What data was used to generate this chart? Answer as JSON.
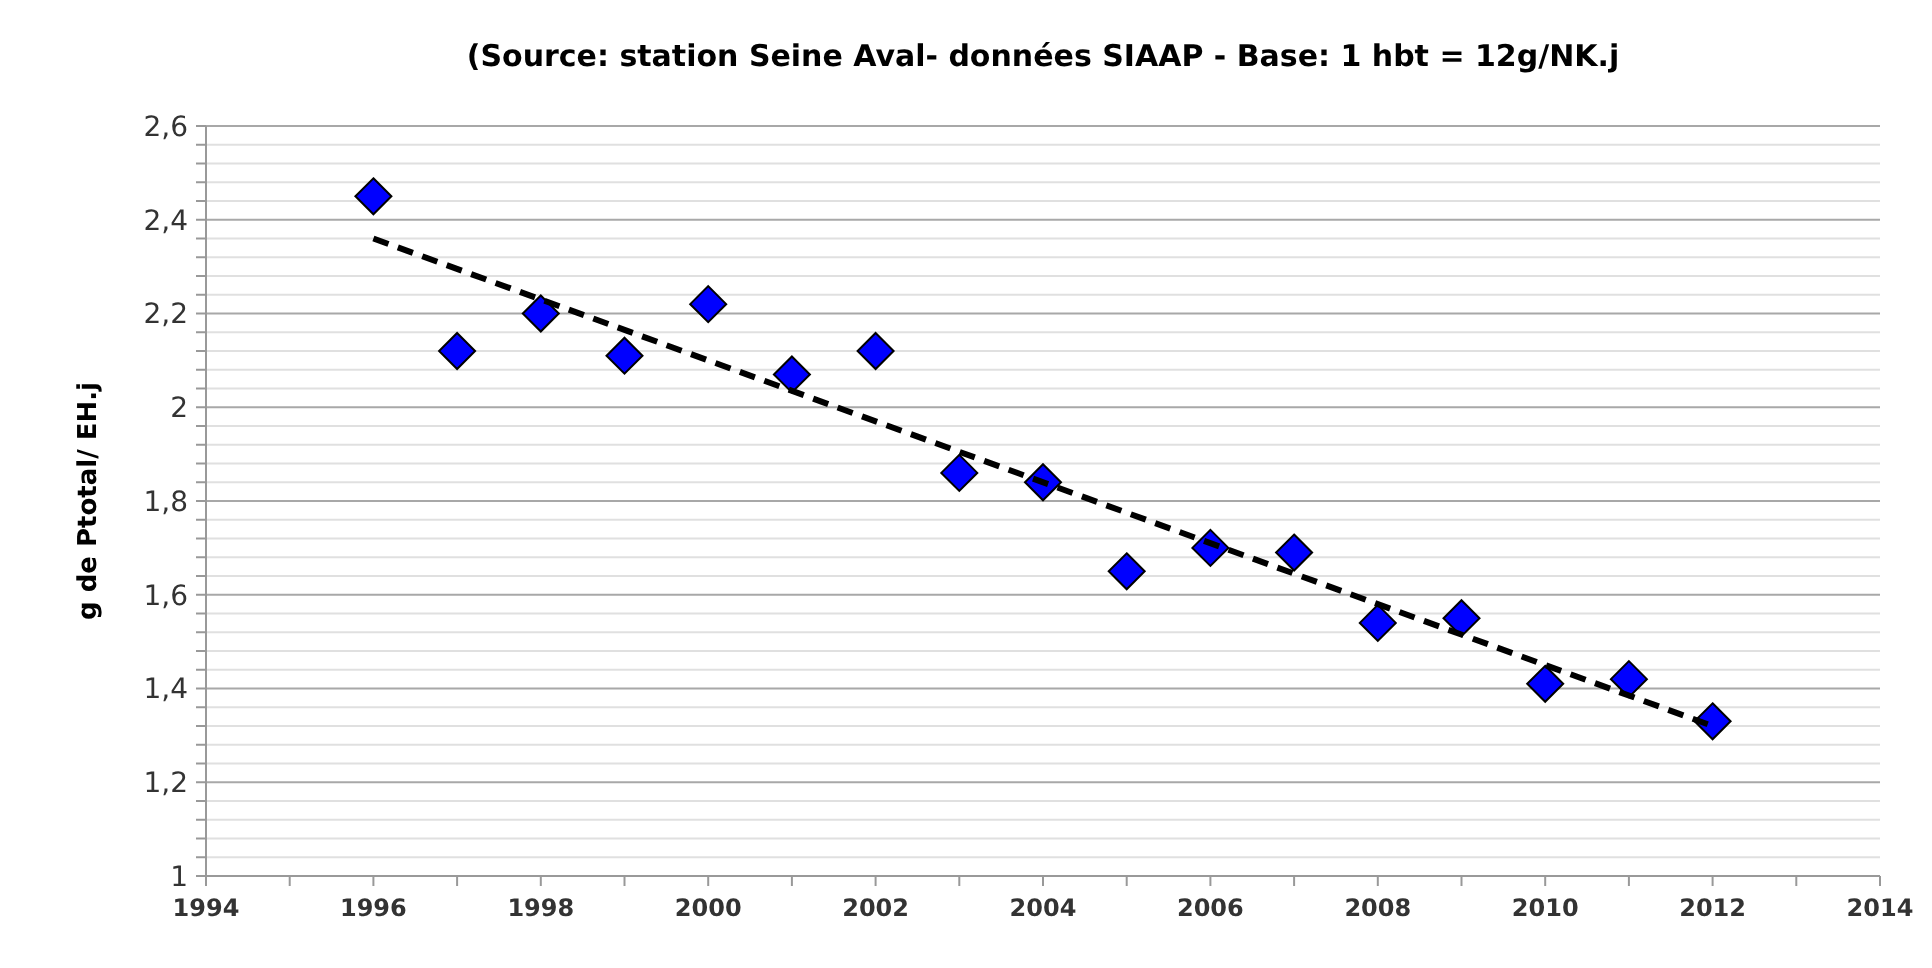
{
  "chart_data": {
    "type": "scatter",
    "title": "(Source: station Seine Aval- données SIAAP - Base: 1 hbt = 12g/NK.j",
    "ylabel": "g de Ptotal/ EH.j",
    "series": [
      {
        "color": "#0000ff",
        "marker": "diamond",
        "x": [
          1996,
          1997,
          1998,
          1999,
          2000,
          2001,
          2002,
          2003,
          2004,
          2005,
          2006,
          2007,
          2008,
          2009,
          2010,
          2011,
          2012
        ],
        "values": [
          2.45,
          2.12,
          2.2,
          2.11,
          2.22,
          2.07,
          2.12,
          1.86,
          1.84,
          1.65,
          1.7,
          1.69,
          1.54,
          1.55,
          1.41,
          1.42,
          1.33
        ]
      },
      {
        "type": "line",
        "color": "#000000",
        "line_style": "dashed",
        "marker": "none",
        "x": [
          1996,
          2012
        ],
        "values": [
          2.36,
          1.32
        ]
      }
    ],
    "xlim": [
      1994,
      2014
    ],
    "xticks": [
      1994,
      {
        "value": 1995,
        "label": null
      },
      1996,
      {
        "value": 1997,
        "label": null
      },
      1998,
      {
        "value": 1999,
        "label": null
      },
      2000,
      {
        "value": 2001,
        "label": null
      },
      2002,
      {
        "value": 2003,
        "label": null
      },
      2004,
      {
        "value": 2005,
        "label": null
      },
      2006,
      {
        "value": 2007,
        "label": null
      },
      2008,
      {
        "value": 2009,
        "label": null
      },
      2010,
      {
        "value": 2011,
        "label": null
      },
      2012,
      {
        "value": 2013,
        "label": null
      },
      2014
    ],
    "ylim": [
      1,
      2.6
    ],
    "yticks": [
      1,
      {
        "value": 1.04,
        "label": null
      },
      {
        "value": 1.08,
        "label": null
      },
      {
        "value": 1.12,
        "label": null
      },
      {
        "value": 1.16,
        "label": null
      },
      {
        "value": 1.2,
        "label": "1,2"
      },
      {
        "value": 1.24,
        "label": null
      },
      {
        "value": 1.28,
        "label": null
      },
      {
        "value": 1.32,
        "label": null
      },
      {
        "value": 1.36,
        "label": null
      },
      {
        "value": 1.4,
        "label": "1,4"
      },
      {
        "value": 1.44,
        "label": null
      },
      {
        "value": 1.48,
        "label": null
      },
      {
        "value": 1.52,
        "label": null
      },
      {
        "value": 1.56,
        "label": null
      },
      {
        "value": 1.6,
        "label": "1,6"
      },
      {
        "value": 1.64,
        "label": null
      },
      {
        "value": 1.68,
        "label": null
      },
      {
        "value": 1.72,
        "label": null
      },
      {
        "value": 1.76,
        "label": null
      },
      {
        "value": 1.8,
        "label": "1,8"
      },
      {
        "value": 1.84,
        "label": null
      },
      {
        "value": 1.88,
        "label": null
      },
      {
        "value": 1.92,
        "label": null
      },
      {
        "value": 1.96,
        "label": null
      },
      2,
      {
        "value": 2.04,
        "label": null
      },
      {
        "value": 2.08,
        "label": null
      },
      {
        "value": 2.12,
        "label": null
      },
      {
        "value": 2.16,
        "label": null
      },
      {
        "value": 2.2,
        "label": "2,2"
      },
      {
        "value": 2.24,
        "label": null
      },
      {
        "value": 2.28,
        "label": null
      },
      {
        "value": 2.32,
        "label": null
      },
      {
        "value": 2.36,
        "label": null
      },
      {
        "value": 2.4,
        "label": "2,4"
      },
      {
        "value": 2.44,
        "label": null
      },
      {
        "value": 2.48,
        "label": null
      },
      {
        "value": 2.52,
        "label": null
      },
      {
        "value": 2.56,
        "label": null
      },
      {
        "value": 2.6,
        "label": "2,6"
      }
    ],
    "grid": "y"
  }
}
